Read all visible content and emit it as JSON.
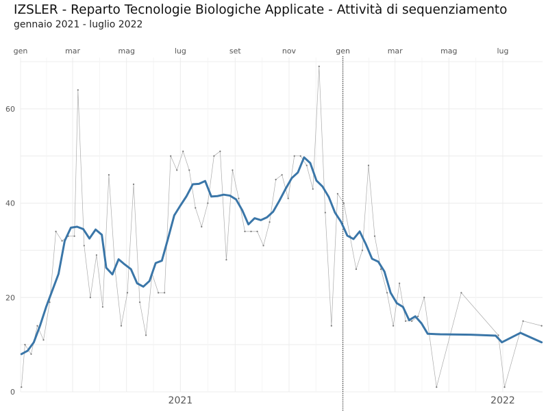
{
  "chart_data": {
    "type": "line",
    "title": "IZSLER - Reparto Tecnologie Biologiche Applicate - Attività di sequenziamento",
    "subtitle": "gennaio 2021 - luglio 2022",
    "xlabel": "",
    "ylabel": "",
    "ylim": [
      0,
      70
    ],
    "yticks": [
      0,
      20,
      40,
      60
    ],
    "x_ticks_top": [
      "gen",
      "mar",
      "mag",
      "lug",
      "set",
      "nov",
      "gen",
      "mar",
      "mag",
      "lug"
    ],
    "x_ticks_bottom": [
      "2021",
      "2022"
    ],
    "x_tick_dates": [
      "2021-01-01",
      "2021-03-01",
      "2021-05-01",
      "2021-07-01",
      "2021-09-01",
      "2021-11-01",
      "2022-01-01",
      "2022-03-01",
      "2022-05-01",
      "2022-07-01"
    ],
    "x_year_dates": [
      "2021-07-01",
      "2022-07-01"
    ],
    "x_range": [
      "2021-01-01",
      "2022-08-15"
    ],
    "vline_date": "2022-01-01",
    "grid": true,
    "series": [
      {
        "kind": "weekly",
        "color": "#aaaaaa",
        "points": [
          [
            "2021-01-02",
            1
          ],
          [
            "2021-01-06",
            10
          ],
          [
            "2021-01-13",
            8
          ],
          [
            "2021-01-20",
            14
          ],
          [
            "2021-01-27",
            11
          ],
          [
            "2021-02-03",
            19
          ],
          [
            "2021-02-10",
            34
          ],
          [
            "2021-02-17",
            32
          ],
          [
            "2021-02-24",
            33
          ],
          [
            "2021-03-03",
            33
          ],
          [
            "2021-03-07",
            64
          ],
          [
            "2021-03-14",
            31
          ],
          [
            "2021-03-21",
            20
          ],
          [
            "2021-03-28",
            29
          ],
          [
            "2021-04-04",
            18
          ],
          [
            "2021-04-11",
            46
          ],
          [
            "2021-04-18",
            26
          ],
          [
            "2021-04-25",
            14
          ],
          [
            "2021-05-02",
            21
          ],
          [
            "2021-05-09",
            44
          ],
          [
            "2021-05-16",
            19
          ],
          [
            "2021-05-23",
            12
          ],
          [
            "2021-05-30",
            25
          ],
          [
            "2021-06-06",
            21
          ],
          [
            "2021-06-13",
            21
          ],
          [
            "2021-06-20",
            50
          ],
          [
            "2021-06-27",
            47
          ],
          [
            "2021-07-04",
            51
          ],
          [
            "2021-07-11",
            47
          ],
          [
            "2021-07-18",
            39
          ],
          [
            "2021-07-25",
            35
          ],
          [
            "2021-08-01",
            40
          ],
          [
            "2021-08-08",
            50
          ],
          [
            "2021-08-15",
            51
          ],
          [
            "2021-08-22",
            28
          ],
          [
            "2021-08-29",
            47
          ],
          [
            "2021-09-05",
            41
          ],
          [
            "2021-09-12",
            34
          ],
          [
            "2021-09-19",
            34
          ],
          [
            "2021-09-26",
            34
          ],
          [
            "2021-10-03",
            31
          ],
          [
            "2021-10-10",
            36
          ],
          [
            "2021-10-17",
            45
          ],
          [
            "2021-10-24",
            46
          ],
          [
            "2021-10-31",
            41
          ],
          [
            "2021-11-07",
            50
          ],
          [
            "2021-11-14",
            50
          ],
          [
            "2021-11-21",
            48
          ],
          [
            "2021-11-28",
            43
          ],
          [
            "2021-12-05",
            69
          ],
          [
            "2021-12-12",
            38
          ],
          [
            "2021-12-19",
            14
          ],
          [
            "2021-12-26",
            42
          ],
          [
            "2022-01-02",
            40
          ],
          [
            "2022-01-09",
            33
          ],
          [
            "2022-01-16",
            26
          ],
          [
            "2022-01-23",
            30
          ],
          [
            "2022-01-30",
            48
          ],
          [
            "2022-02-06",
            33
          ],
          [
            "2022-02-13",
            26
          ],
          [
            "2022-02-20",
            21
          ],
          [
            "2022-02-27",
            14
          ],
          [
            "2022-03-06",
            23
          ],
          [
            "2022-03-13",
            15
          ],
          [
            "2022-03-20",
            15
          ],
          [
            "2022-03-27",
            16
          ],
          [
            "2022-04-03",
            20
          ],
          [
            "2022-04-17",
            1
          ],
          [
            "2022-05-15",
            21
          ],
          [
            "2022-06-26",
            12
          ],
          [
            "2022-07-03",
            1
          ],
          [
            "2022-07-24",
            15
          ],
          [
            "2022-08-14",
            14
          ]
        ]
      },
      {
        "kind": "moving-average",
        "color": "#3a76a8",
        "points": [
          [
            "2021-01-02",
            8
          ],
          [
            "2021-01-09",
            8.7
          ],
          [
            "2021-01-16",
            10.5
          ],
          [
            "2021-01-23",
            14
          ],
          [
            "2021-01-30",
            18
          ],
          [
            "2021-02-06",
            21.5
          ],
          [
            "2021-02-13",
            25
          ],
          [
            "2021-02-20",
            32
          ],
          [
            "2021-02-27",
            34.8
          ],
          [
            "2021-03-06",
            35
          ],
          [
            "2021-03-13",
            34.5
          ],
          [
            "2021-03-20",
            32.5
          ],
          [
            "2021-03-27",
            34.4
          ],
          [
            "2021-04-03",
            33.3
          ],
          [
            "2021-04-08",
            26.3
          ],
          [
            "2021-04-15",
            24.9
          ],
          [
            "2021-04-22",
            28.1
          ],
          [
            "2021-04-29",
            27
          ],
          [
            "2021-05-06",
            26
          ],
          [
            "2021-05-13",
            23
          ],
          [
            "2021-05-20",
            22.3
          ],
          [
            "2021-05-27",
            23.5
          ],
          [
            "2021-06-03",
            27.3
          ],
          [
            "2021-06-10",
            27.8
          ],
          [
            "2021-06-17",
            32.5
          ],
          [
            "2021-06-24",
            37.4
          ],
          [
            "2021-07-01",
            39.5
          ],
          [
            "2021-07-08",
            41.5
          ],
          [
            "2021-07-15",
            44
          ],
          [
            "2021-07-22",
            44.1
          ],
          [
            "2021-07-29",
            44.7
          ],
          [
            "2021-08-05",
            41.4
          ],
          [
            "2021-08-12",
            41.5
          ],
          [
            "2021-08-19",
            41.8
          ],
          [
            "2021-08-26",
            41.6
          ],
          [
            "2021-09-02",
            40.8
          ],
          [
            "2021-09-09",
            38.5
          ],
          [
            "2021-09-16",
            35.5
          ],
          [
            "2021-09-23",
            36.8
          ],
          [
            "2021-09-30",
            36.4
          ],
          [
            "2021-10-07",
            37
          ],
          [
            "2021-10-14",
            38.2
          ],
          [
            "2021-10-21",
            40.5
          ],
          [
            "2021-10-28",
            43
          ],
          [
            "2021-11-04",
            45.3
          ],
          [
            "2021-11-11",
            46.5
          ],
          [
            "2021-11-18",
            49.7
          ],
          [
            "2021-11-25",
            48.5
          ],
          [
            "2021-12-02",
            44.8
          ],
          [
            "2021-12-09",
            43.5
          ],
          [
            "2021-12-16",
            41.3
          ],
          [
            "2021-12-23",
            38
          ],
          [
            "2021-12-30",
            36
          ],
          [
            "2022-01-06",
            33.1
          ],
          [
            "2022-01-13",
            32.4
          ],
          [
            "2022-01-20",
            34
          ],
          [
            "2022-01-27",
            31.3
          ],
          [
            "2022-02-03",
            28.2
          ],
          [
            "2022-02-10",
            27.6
          ],
          [
            "2022-02-17",
            25.5
          ],
          [
            "2022-02-24",
            21
          ],
          [
            "2022-03-03",
            18.8
          ],
          [
            "2022-03-10",
            18
          ],
          [
            "2022-03-17",
            15.2
          ],
          [
            "2022-03-24",
            16
          ],
          [
            "2022-03-31",
            14.5
          ],
          [
            "2022-04-07",
            12.3
          ],
          [
            "2022-04-21",
            12.2
          ],
          [
            "2022-05-26",
            12.1
          ],
          [
            "2022-06-23",
            11.9
          ],
          [
            "2022-06-30",
            10.5
          ],
          [
            "2022-07-21",
            12.5
          ],
          [
            "2022-08-14",
            10.5
          ]
        ]
      }
    ]
  }
}
